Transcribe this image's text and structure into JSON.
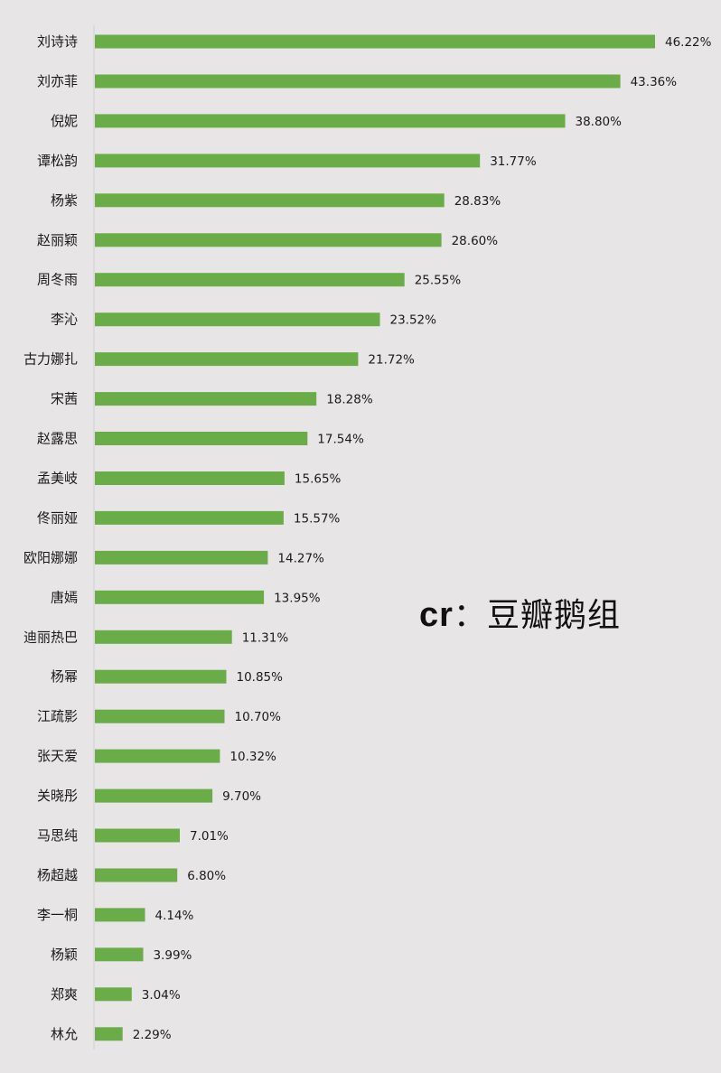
{
  "watermark": {
    "prefix": "cr",
    "separator": "：",
    "source": "豆瓣鹅组"
  },
  "colors": {
    "bar": "#6aac47",
    "background": "#e7e5e6",
    "axis": "#d2d0d1"
  },
  "chart_data": {
    "type": "bar",
    "orientation": "horizontal",
    "title": "",
    "xlabel": "",
    "ylabel": "",
    "value_suffix": "%",
    "xlim": [
      0,
      50
    ],
    "grid": false,
    "legend": "none",
    "categories": [
      "刘诗诗",
      "刘亦菲",
      "倪妮",
      "谭松韵",
      "杨紫",
      "赵丽颖",
      "周冬雨",
      "李沁",
      "古力娜扎",
      "宋茜",
      "赵露思",
      "孟美岐",
      "佟丽娅",
      "欧阳娜娜",
      "唐嫣",
      "迪丽热巴",
      "杨幂",
      "江疏影",
      "张天爱",
      "关晓彤",
      "马思纯",
      "杨超越",
      "李一桐",
      "杨颖",
      "郑爽",
      "林允"
    ],
    "values": [
      46.22,
      43.36,
      38.8,
      31.77,
      28.83,
      28.6,
      25.55,
      23.52,
      21.72,
      18.28,
      17.54,
      15.65,
      15.57,
      14.27,
      13.95,
      11.31,
      10.85,
      10.7,
      10.32,
      9.7,
      7.01,
      6.8,
      4.14,
      3.99,
      3.04,
      2.29
    ],
    "value_labels": [
      "46.22%",
      "43.36%",
      "38.80%",
      "31.77%",
      "28.83%",
      "28.60%",
      "25.55%",
      "23.52%",
      "21.72%",
      "18.28%",
      "17.54%",
      "15.65%",
      "15.57%",
      "14.27%",
      "13.95%",
      "11.31%",
      "10.85%",
      "10.70%",
      "10.32%",
      "9.70%",
      "7.01%",
      "6.80%",
      "4.14%",
      "3.99%",
      "3.04%",
      "2.29%"
    ]
  }
}
